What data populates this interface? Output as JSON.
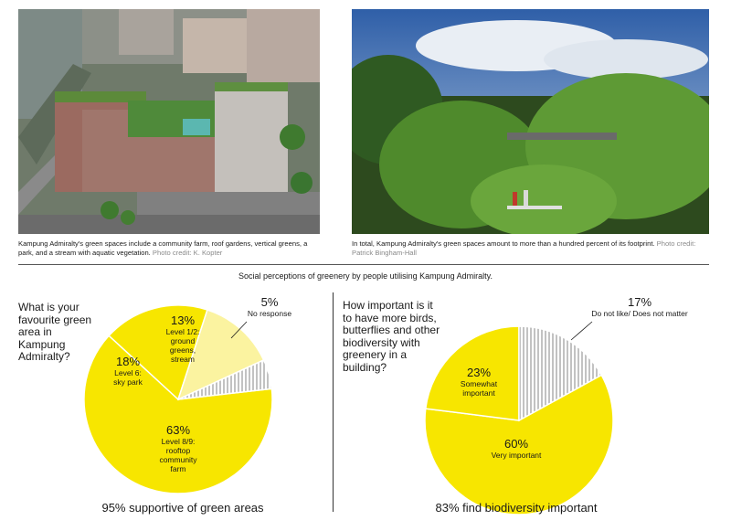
{
  "photos": {
    "left": {
      "caption": "Kampung Admiralty's green spaces include a community farm, roof gardens, vertical greens, a park, and a stream with aquatic vegetation.",
      "credit": "Photo credit: K. Kopter"
    },
    "right": {
      "caption": "In total, Kampung Admiralty's green spaces amount to more than a hundred percent of its footprint.",
      "credit": "Photo credit: Patrick Bingham-Hall"
    }
  },
  "section_title": "Social perceptions of greenery by people utilising Kampung Admiralty.",
  "colors": {
    "yellow": "#f7e600",
    "light_yellow": "#fbf3a0",
    "hatch": "#9a9a9a",
    "text": "#1a1a1a"
  },
  "chart_data": [
    {
      "type": "pie",
      "title": "What is your favourite green area in Kampung Admiralty?",
      "summary": "95% supportive of green areas",
      "slices": [
        {
          "value": 63,
          "percent_label": "63%",
          "label_lines": [
            "Level 8/9:",
            "rooftop",
            "community",
            "farm"
          ],
          "fill": "yellow"
        },
        {
          "value": 18,
          "percent_label": "18%",
          "label_lines": [
            "Level 6:",
            "sky park"
          ],
          "fill": "yellow"
        },
        {
          "value": 13,
          "percent_label": "13%",
          "label_lines": [
            "Level 1/2:",
            "ground",
            "greens,",
            "stream"
          ],
          "fill": "light_yellow"
        },
        {
          "value": 5,
          "percent_label": "5%",
          "label_lines": [
            "No response"
          ],
          "fill": "hatch"
        }
      ]
    },
    {
      "type": "pie",
      "title": "How important is it to have more birds, butterflies and other biodiversity with greenery in a building?",
      "summary": "83% find biodiversity important",
      "slices": [
        {
          "value": 60,
          "percent_label": "60%",
          "label_lines": [
            "Very important"
          ],
          "fill": "yellow"
        },
        {
          "value": 23,
          "percent_label": "23%",
          "label_lines": [
            "Somewhat",
            "important"
          ],
          "fill": "yellow"
        },
        {
          "value": 17,
          "percent_label": "17%",
          "label_lines": [
            "Do not like/ Does not matter"
          ],
          "fill": "hatch"
        }
      ]
    }
  ]
}
